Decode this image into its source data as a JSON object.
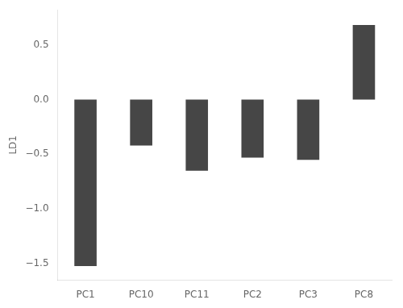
{
  "chart_data": {
    "type": "bar",
    "categories": [
      "PC1",
      "PC10",
      "PC11",
      "PC2",
      "PC3",
      "PC8"
    ],
    "values": [
      -1.52,
      -0.42,
      -0.65,
      -0.53,
      -0.55,
      0.68
    ],
    "color": "#464646",
    "ylabel": "LD1",
    "ylim": [
      -1.65,
      0.82
    ],
    "yticks": [
      {
        "value": -1.5,
        "label": "−1.5"
      },
      {
        "value": -1.0,
        "label": "−1.0"
      },
      {
        "value": -0.5,
        "label": "−0.5"
      },
      {
        "value": 0,
        "label": "0.0"
      },
      0.5
    ],
    "grid": false
  }
}
